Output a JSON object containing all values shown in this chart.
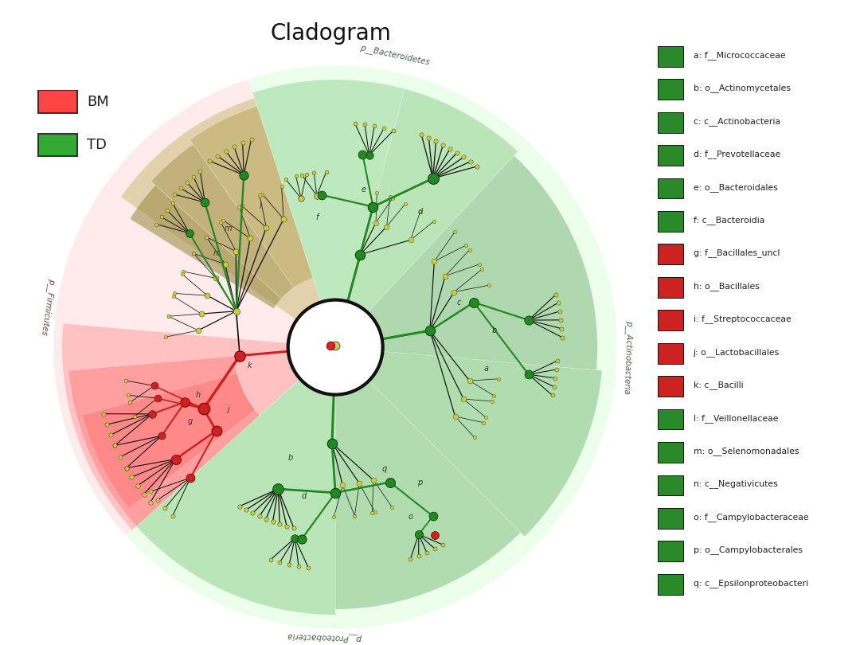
{
  "title": "Cladogram",
  "title_fontsize": 20,
  "bg_color": "#ffffff",
  "legend_groups": [
    {
      "label": "BM",
      "color": "#ff4444"
    },
    {
      "label": "TD",
      "color": "#33aa33"
    }
  ],
  "legend_items": [
    {
      "key": "a",
      "label": "a: f__Micrococcaceae",
      "color": "#2a8a2a"
    },
    {
      "key": "b",
      "label": "b: o__Actinomycetales",
      "color": "#2a8a2a"
    },
    {
      "key": "c",
      "label": "c: c__Actinobacteria",
      "color": "#2a8a2a"
    },
    {
      "key": "d",
      "label": "d: f__Prevotellaceae",
      "color": "#2a8a2a"
    },
    {
      "key": "e",
      "label": "e: o__Bacteroidales",
      "color": "#2a8a2a"
    },
    {
      "key": "f",
      "label": "f: c__Bacteroidia",
      "color": "#2a8a2a"
    },
    {
      "key": "g",
      "label": "g: f__Bacillales_uncl",
      "color": "#cc2222"
    },
    {
      "key": "h",
      "label": "h: o__Bacillales",
      "color": "#cc2222"
    },
    {
      "key": "i",
      "label": "i: f__Streptococcaceae",
      "color": "#cc2222"
    },
    {
      "key": "j",
      "label": "j: o__Lactobacillales",
      "color": "#cc2222"
    },
    {
      "key": "k",
      "label": "k: c__Bacilli",
      "color": "#cc2222"
    },
    {
      "key": "l",
      "label": "l: f__Veillonellaceae",
      "color": "#2a8a2a"
    },
    {
      "key": "m",
      "label": "m: o__Selenomonadales",
      "color": "#2a8a2a"
    },
    {
      "key": "n",
      "label": "n: c__Negativicutes",
      "color": "#2a8a2a"
    },
    {
      "key": "o",
      "label": "o: f__Campylobacteraceae",
      "color": "#2a8a2a"
    },
    {
      "key": "p",
      "label": "p: o__Campylobacterales",
      "color": "#2a8a2a"
    },
    {
      "key": "q",
      "label": "q: c__Epsilonproteobacteri",
      "color": "#2a8a2a"
    }
  ]
}
